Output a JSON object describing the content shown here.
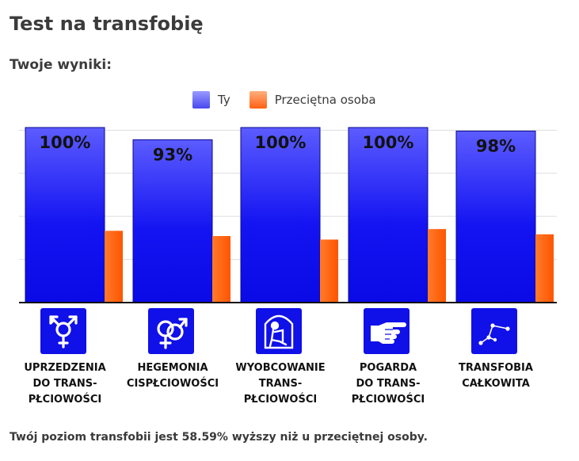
{
  "page": {
    "title": "Test na transfobię",
    "subtitle": "Twoje wyniki:",
    "footer": "Twój poziom transfobii jest 58.59% wyższy niż u przeciętnej osoby."
  },
  "chart_data": {
    "type": "bar",
    "categories": [
      [
        "UPRZEDZENIA",
        "DO TRANS-",
        "PŁCIOWOŚCI"
      ],
      [
        "HEGEMONIA",
        "CISPŁCIOWOŚCI"
      ],
      [
        "WYOBCOWANIE",
        "TRANS-",
        "PŁCIOWOŚCI"
      ],
      [
        "POGARDA",
        "DO TRANS-",
        "PŁCIOWOŚCI"
      ],
      [
        "TRANSFOBIA",
        "CAŁKOWITA"
      ]
    ],
    "icons": [
      "transgender-symbol-icon",
      "heterosexual-symbol-icon",
      "sitting-person-icon",
      "pointing-hand-icon",
      "constellation-icon"
    ],
    "series": [
      {
        "name": "Ty",
        "values": [
          100,
          93,
          100,
          100,
          98
        ],
        "labels": [
          "100%",
          "93%",
          "100%",
          "100%",
          "98%"
        ],
        "color": "#1010f0"
      },
      {
        "name": "Przeciętna osoba",
        "values": [
          41,
          38,
          36,
          42,
          39
        ],
        "color": "#ff5a00"
      }
    ],
    "ylim": [
      0,
      100
    ],
    "grid": true,
    "legend": "top-center"
  }
}
